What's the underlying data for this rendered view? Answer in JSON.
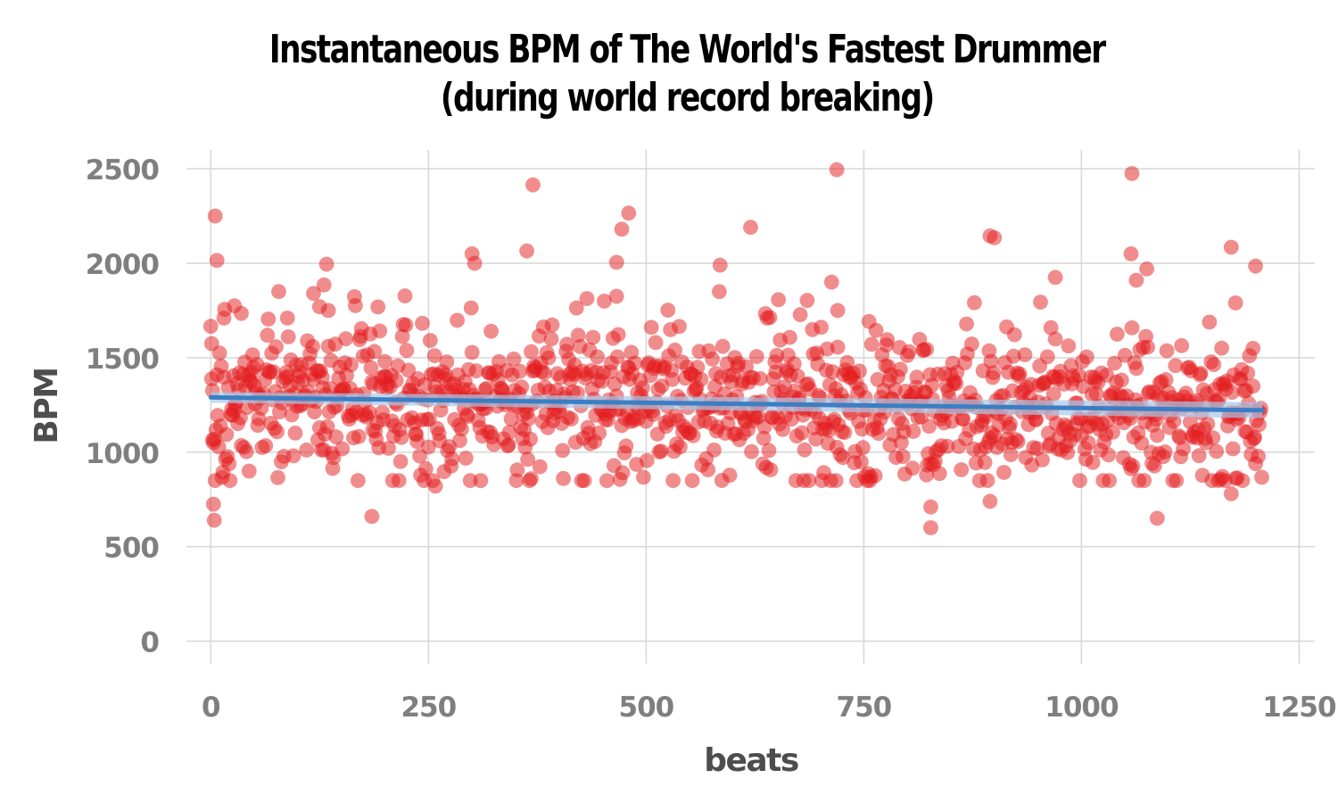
{
  "chart_data": {
    "type": "scatter",
    "title_lines": [
      "Instantaneous BPM of The World's Fastest Drummer",
      "(during world record breaking)"
    ],
    "xlabel": "beats",
    "ylabel": "BPM",
    "xlim": [
      -28,
      1268
    ],
    "ylim": [
      -120,
      2600
    ],
    "x_ticks": [
      0,
      250,
      500,
      750,
      1000,
      1250
    ],
    "x_tick_labels": [
      "0",
      "250",
      "500",
      "750",
      "1000",
      "1250"
    ],
    "y_ticks": [
      0,
      500,
      1000,
      1500,
      2000,
      2500
    ],
    "y_tick_labels": [
      "0",
      "500",
      "1000",
      "1500",
      "2000",
      "2500"
    ],
    "grid": true,
    "legend": "none",
    "n_points": 1208,
    "point_color": "#e41a1c",
    "trend_color": "#3a7fc4",
    "trend_band_color": "#a8c8e8",
    "trend_line": {
      "x": [
        0,
        1208
      ],
      "y": [
        1290,
        1222
      ]
    },
    "highlight_points": [
      {
        "x": 1,
        "y": 1575
      },
      {
        "x": 2,
        "y": 1065
      },
      {
        "x": 3,
        "y": 725
      },
      {
        "x": 4,
        "y": 640
      },
      {
        "x": 5,
        "y": 2250
      },
      {
        "x": 7,
        "y": 2015
      },
      {
        "x": 12,
        "y": 1455
      },
      {
        "x": 15,
        "y": 1710
      },
      {
        "x": 27,
        "y": 1775
      },
      {
        "x": 35,
        "y": 1735
      },
      {
        "x": 88,
        "y": 1710
      },
      {
        "x": 118,
        "y": 1840
      },
      {
        "x": 125,
        "y": 1770
      },
      {
        "x": 130,
        "y": 1885
      },
      {
        "x": 133,
        "y": 1995
      },
      {
        "x": 135,
        "y": 1750
      },
      {
        "x": 185,
        "y": 660
      },
      {
        "x": 258,
        "y": 820
      },
      {
        "x": 300,
        "y": 2050
      },
      {
        "x": 303,
        "y": 2000
      },
      {
        "x": 363,
        "y": 2065
      },
      {
        "x": 370,
        "y": 2415
      },
      {
        "x": 368,
        "y": 860
      },
      {
        "x": 466,
        "y": 2005
      },
      {
        "x": 472,
        "y": 2180
      },
      {
        "x": 480,
        "y": 2265
      },
      {
        "x": 466,
        "y": 1825
      },
      {
        "x": 585,
        "y": 1990
      },
      {
        "x": 620,
        "y": 2190
      },
      {
        "x": 713,
        "y": 1900
      },
      {
        "x": 719,
        "y": 2495
      },
      {
        "x": 720,
        "y": 1750
      },
      {
        "x": 718,
        "y": 850
      },
      {
        "x": 822,
        "y": 880
      },
      {
        "x": 827,
        "y": 710
      },
      {
        "x": 827,
        "y": 600
      },
      {
        "x": 895,
        "y": 2145
      },
      {
        "x": 900,
        "y": 2135
      },
      {
        "x": 895,
        "y": 740
      },
      {
        "x": 970,
        "y": 1925
      },
      {
        "x": 1058,
        "y": 2475
      },
      {
        "x": 1057,
        "y": 2050
      },
      {
        "x": 1063,
        "y": 1910
      },
      {
        "x": 1075,
        "y": 1970
      },
      {
        "x": 1087,
        "y": 650
      },
      {
        "x": 1172,
        "y": 2085
      },
      {
        "x": 1172,
        "y": 780
      },
      {
        "x": 1177,
        "y": 1790
      },
      {
        "x": 1200,
        "y": 1985
      },
      {
        "x": 1197,
        "y": 1550
      }
    ]
  }
}
